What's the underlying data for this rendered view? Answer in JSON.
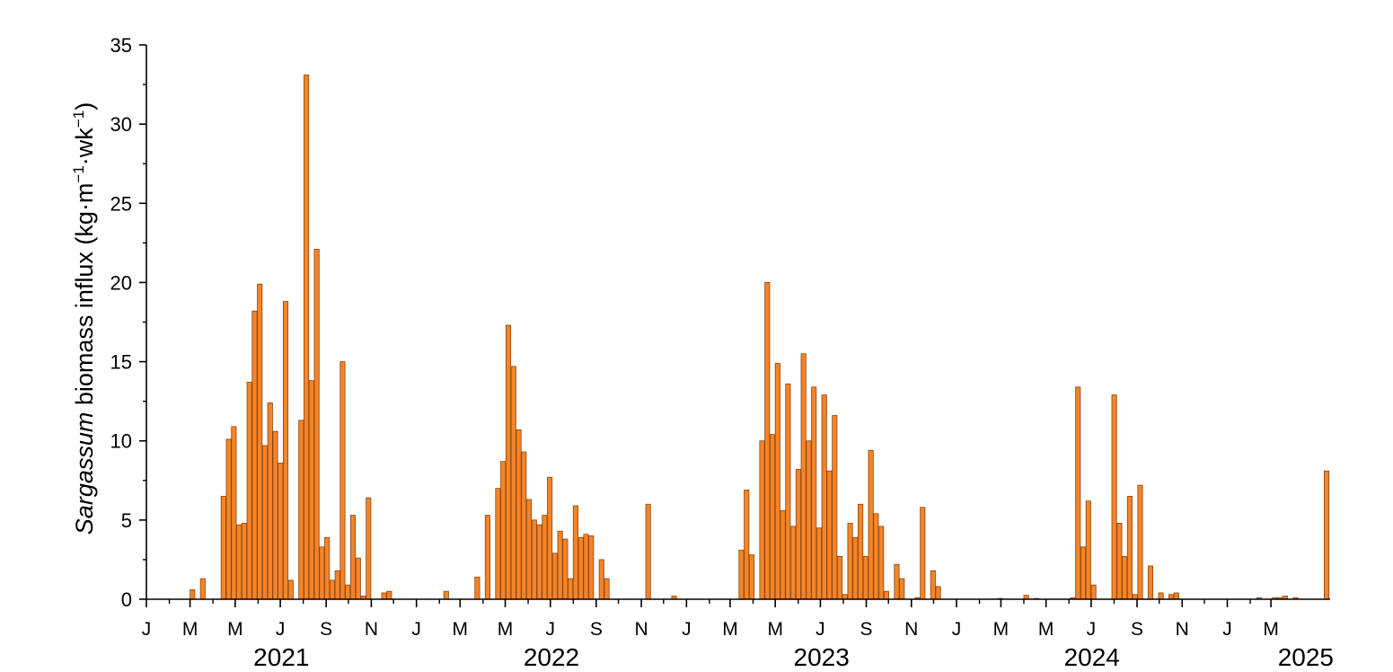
{
  "chart_data": {
    "type": "bar",
    "ylabel": {
      "italic": "Sargassum",
      "rest": " biomass influx (kg·m",
      "sup1": "−1",
      "mid": "·wk",
      "sup2": "−1",
      "close": ")"
    },
    "ylim": [
      0,
      35
    ],
    "yticks": [
      "0",
      "5",
      "10",
      "15",
      "20",
      "25",
      "30",
      "35"
    ],
    "xlim": [
      "2021-01-01",
      "2025-05-20"
    ],
    "month_ticks": [
      "J",
      "M",
      "M",
      "J",
      "S",
      "N",
      "J",
      "M",
      "M",
      "J",
      "S",
      "N",
      "J",
      "M",
      "M",
      "J",
      "S",
      "N",
      "J",
      "M",
      "M",
      "J",
      "S",
      "N",
      "J",
      "M"
    ],
    "years": [
      "2021",
      "2022",
      "2023",
      "2024",
      "2025"
    ],
    "bar_color": "#f58428",
    "bars": [
      [
        "2021-03-01",
        0.6
      ],
      [
        "2021-03-15",
        1.3
      ],
      [
        "2021-04-12",
        6.5
      ],
      [
        "2021-04-19",
        10.1
      ],
      [
        "2021-04-26",
        10.9
      ],
      [
        "2021-05-03",
        4.7
      ],
      [
        "2021-05-10",
        4.8
      ],
      [
        "2021-05-17",
        13.7
      ],
      [
        "2021-05-24",
        18.2
      ],
      [
        "2021-05-31",
        19.9
      ],
      [
        "2021-06-07",
        9.7
      ],
      [
        "2021-06-14",
        12.4
      ],
      [
        "2021-06-21",
        10.6
      ],
      [
        "2021-06-28",
        8.6
      ],
      [
        "2021-07-05",
        18.8
      ],
      [
        "2021-07-12",
        1.2
      ],
      [
        "2021-07-26",
        11.3
      ],
      [
        "2021-08-02",
        33.1
      ],
      [
        "2021-08-09",
        13.8
      ],
      [
        "2021-08-16",
        22.1
      ],
      [
        "2021-08-23",
        3.3
      ],
      [
        "2021-08-30",
        3.9
      ],
      [
        "2021-09-06",
        1.2
      ],
      [
        "2021-09-13",
        1.8
      ],
      [
        "2021-09-20",
        15.0
      ],
      [
        "2021-09-27",
        0.9
      ],
      [
        "2021-10-04",
        5.3
      ],
      [
        "2021-10-11",
        2.6
      ],
      [
        "2021-10-18",
        0.2
      ],
      [
        "2021-10-25",
        6.4
      ],
      [
        "2021-11-15",
        0.4
      ],
      [
        "2021-11-22",
        0.5
      ],
      [
        "2022-02-07",
        0.5
      ],
      [
        "2022-03-21",
        1.4
      ],
      [
        "2022-04-04",
        5.3
      ],
      [
        "2022-04-18",
        7.0
      ],
      [
        "2022-04-25",
        8.7
      ],
      [
        "2022-05-02",
        17.3
      ],
      [
        "2022-05-09",
        14.7
      ],
      [
        "2022-05-16",
        10.7
      ],
      [
        "2022-05-23",
        9.3
      ],
      [
        "2022-05-30",
        6.3
      ],
      [
        "2022-06-06",
        5.0
      ],
      [
        "2022-06-13",
        4.7
      ],
      [
        "2022-06-20",
        5.3
      ],
      [
        "2022-06-27",
        7.7
      ],
      [
        "2022-07-04",
        2.9
      ],
      [
        "2022-07-11",
        4.3
      ],
      [
        "2022-07-18",
        3.8
      ],
      [
        "2022-07-25",
        1.3
      ],
      [
        "2022-08-01",
        5.9
      ],
      [
        "2022-08-08",
        3.9
      ],
      [
        "2022-08-15",
        4.1
      ],
      [
        "2022-08-22",
        4.0
      ],
      [
        "2022-09-05",
        2.5
      ],
      [
        "2022-09-12",
        1.3
      ],
      [
        "2022-11-07",
        6.0
      ],
      [
        "2022-12-12",
        0.2
      ],
      [
        "2023-03-13",
        3.1
      ],
      [
        "2023-03-20",
        6.9
      ],
      [
        "2023-03-27",
        2.8
      ],
      [
        "2023-04-10",
        10.0
      ],
      [
        "2023-04-17",
        20.0
      ],
      [
        "2023-04-24",
        10.4
      ],
      [
        "2023-05-01",
        14.9
      ],
      [
        "2023-05-08",
        5.6
      ],
      [
        "2023-05-15",
        13.6
      ],
      [
        "2023-05-22",
        4.6
      ],
      [
        "2023-05-29",
        8.2
      ],
      [
        "2023-06-05",
        15.5
      ],
      [
        "2023-06-12",
        10.0
      ],
      [
        "2023-06-19",
        13.4
      ],
      [
        "2023-06-26",
        4.5
      ],
      [
        "2023-07-03",
        12.9
      ],
      [
        "2023-07-10",
        8.1
      ],
      [
        "2023-07-17",
        11.6
      ],
      [
        "2023-07-24",
        2.7
      ],
      [
        "2023-07-31",
        0.3
      ],
      [
        "2023-08-07",
        4.8
      ],
      [
        "2023-08-14",
        3.9
      ],
      [
        "2023-08-21",
        6.0
      ],
      [
        "2023-08-28",
        2.7
      ],
      [
        "2023-09-04",
        9.4
      ],
      [
        "2023-09-11",
        5.4
      ],
      [
        "2023-09-18",
        4.6
      ],
      [
        "2023-09-25",
        0.5
      ],
      [
        "2023-10-09",
        2.2
      ],
      [
        "2023-10-16",
        1.3
      ],
      [
        "2023-11-06",
        0.1
      ],
      [
        "2023-11-13",
        5.8
      ],
      [
        "2023-11-27",
        1.8
      ],
      [
        "2023-12-04",
        0.8
      ],
      [
        "2024-02-26",
        0.05
      ],
      [
        "2024-04-01",
        0.25
      ],
      [
        "2024-04-15",
        0.05
      ],
      [
        "2024-06-03",
        0.1
      ],
      [
        "2024-06-10",
        13.4
      ],
      [
        "2024-06-17",
        3.3
      ],
      [
        "2024-06-24",
        6.2
      ],
      [
        "2024-07-01",
        0.9
      ],
      [
        "2024-07-29",
        12.9
      ],
      [
        "2024-08-05",
        4.8
      ],
      [
        "2024-08-12",
        2.7
      ],
      [
        "2024-08-19",
        6.5
      ],
      [
        "2024-08-26",
        0.3
      ],
      [
        "2024-09-02",
        7.2
      ],
      [
        "2024-09-16",
        2.1
      ],
      [
        "2024-09-30",
        0.4
      ],
      [
        "2024-10-14",
        0.3
      ],
      [
        "2024-10-21",
        0.4
      ],
      [
        "2025-02-10",
        0.1
      ],
      [
        "2025-03-03",
        0.1
      ],
      [
        "2025-03-10",
        0.1
      ],
      [
        "2025-03-17",
        0.2
      ],
      [
        "2025-03-31",
        0.1
      ],
      [
        "2025-05-12",
        8.1
      ]
    ]
  }
}
